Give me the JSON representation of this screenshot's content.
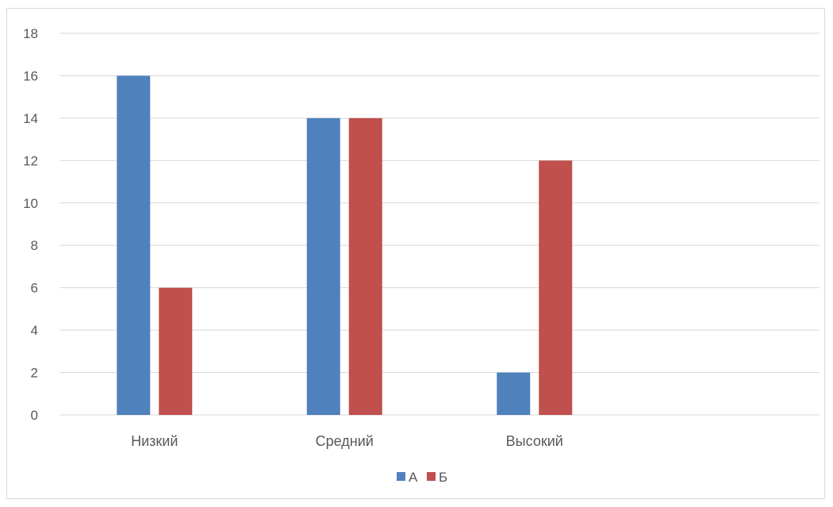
{
  "chart_data": {
    "type": "bar",
    "categories": [
      "Низкий",
      "Средний",
      "Высокий",
      ""
    ],
    "series": [
      {
        "name": "А",
        "values": [
          16,
          14,
          2,
          null
        ],
        "color": "#4f81bd"
      },
      {
        "name": "Б",
        "values": [
          6,
          14,
          12,
          null
        ],
        "color": "#c0504d"
      }
    ],
    "ylim": [
      0,
      18
    ],
    "yticks": [
      0,
      2,
      4,
      6,
      8,
      10,
      12,
      14,
      16,
      18
    ],
    "grid": true,
    "legend_position": "bottom",
    "gridline_color": "#d9d9d9",
    "text_color": "#595959"
  }
}
